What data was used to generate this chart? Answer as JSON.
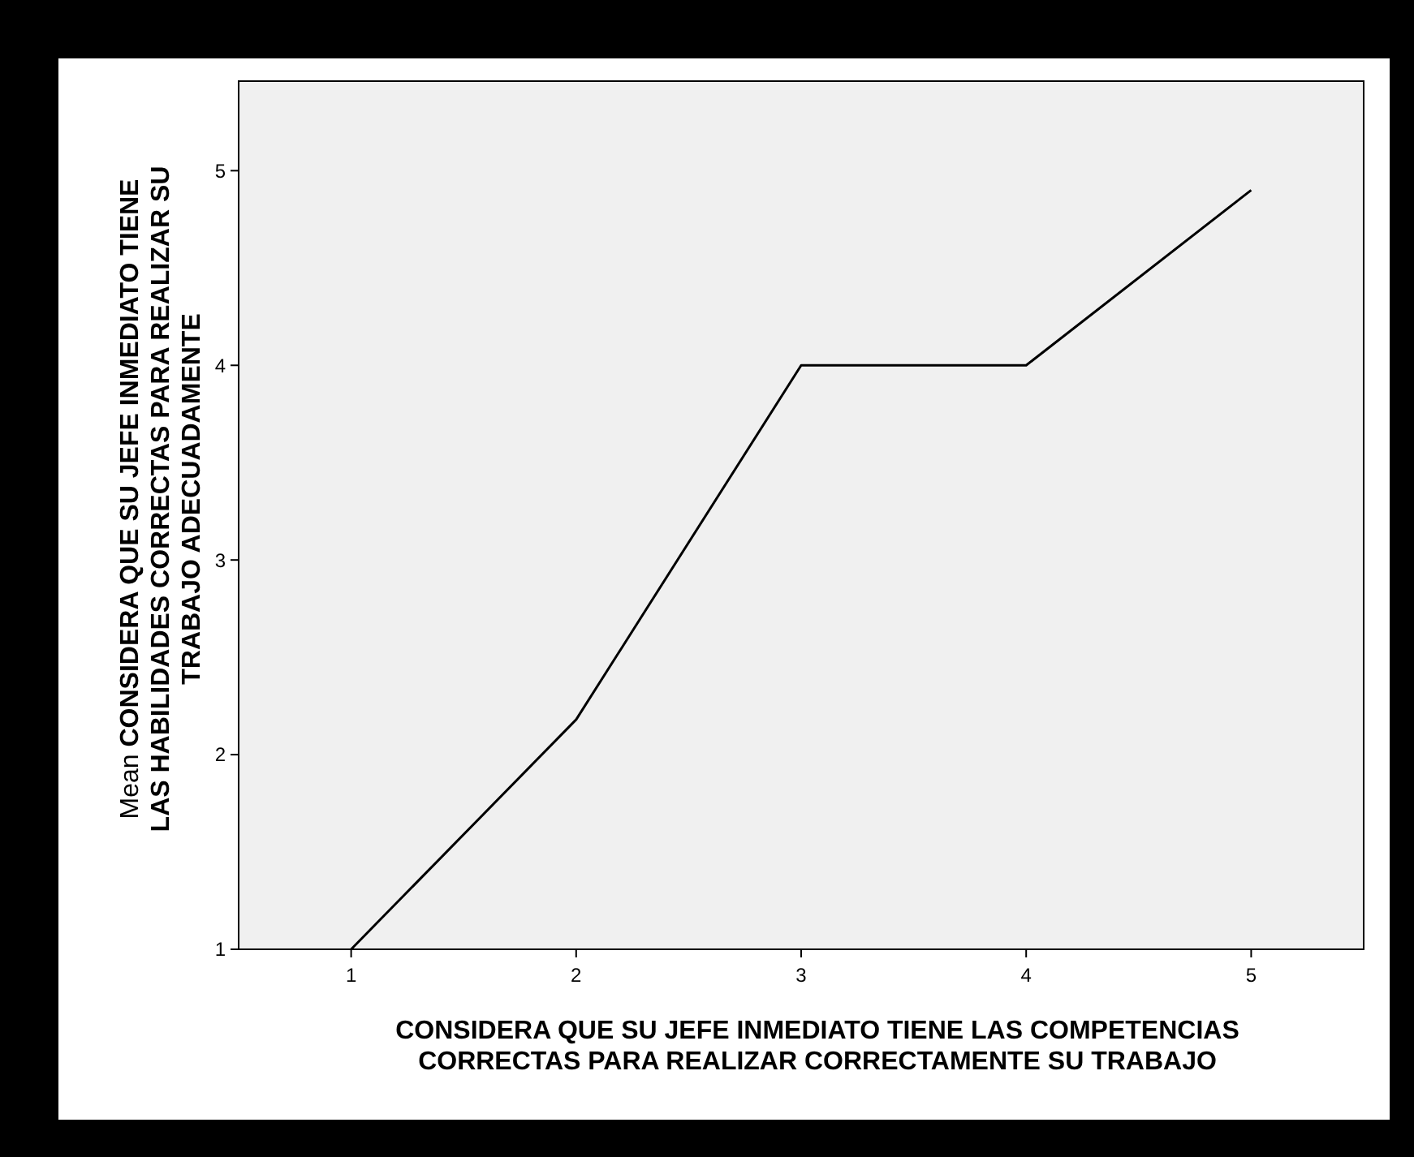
{
  "chart_data": {
    "type": "line",
    "xlabel": "CONSIDERA QUE SU JEFE INMEDIATO TIENE LAS COMPETENCIAS CORRECTAS PARA REALIZAR CORRECTAMENTE SU TRABAJO",
    "ylabel": "Mean CONSIDERA QUE SU JEFE INMEDIATO TIENE LAS HABILIDADES CORRECTAS PARA REALIZAR SU TRABAJO ADECUADAMENTE",
    "categories": [
      "1",
      "2",
      "3",
      "4",
      "5"
    ],
    "series": [
      {
        "color": "#000000",
        "values": [
          1,
          2.18,
          4,
          4,
          4.9
        ]
      }
    ],
    "ylim": [
      1,
      5.46
    ],
    "yticks": [
      1,
      2,
      3,
      4,
      5
    ],
    "grid": false,
    "marker": "none",
    "line_style": "solid"
  }
}
